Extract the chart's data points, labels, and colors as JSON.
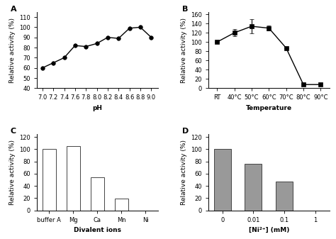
{
  "A": {
    "x": [
      7.0,
      7.2,
      7.4,
      7.6,
      7.8,
      8.0,
      8.2,
      8.4,
      8.6,
      8.8,
      9.0
    ],
    "y": [
      60,
      65,
      70,
      82,
      81,
      84,
      90,
      89,
      99,
      100,
      90
    ],
    "xlabel": "pH",
    "ylabel": "Relative activity (%)",
    "ylim": [
      40,
      115
    ],
    "yticks": [
      40,
      50,
      60,
      70,
      80,
      90,
      100,
      110
    ],
    "xticks": [
      7.0,
      7.2,
      7.4,
      7.6,
      7.8,
      8.0,
      8.2,
      8.4,
      8.6,
      8.8,
      9.0
    ],
    "xlabels": [
      "7.0",
      "7.2",
      "7.4",
      "7.6",
      "7.8",
      "8.0",
      "8.2",
      "8.4",
      "8.6",
      "8.8",
      "9.0"
    ],
    "label": "A"
  },
  "B": {
    "x": [
      0,
      1,
      2,
      3,
      4,
      5,
      6
    ],
    "xlabels": [
      "RT",
      "40°C",
      "50°C",
      "60°C",
      "70°C",
      "80°C",
      "90°C"
    ],
    "y": [
      100,
      120,
      134,
      130,
      87,
      8,
      8
    ],
    "yerr": [
      0,
      8,
      15,
      5,
      0,
      2,
      2
    ],
    "xlabel": "Temperature",
    "ylabel": "Relative activity (%)",
    "ylim": [
      0,
      165
    ],
    "yticks": [
      0,
      20,
      40,
      60,
      80,
      100,
      120,
      140,
      160
    ],
    "label": "B"
  },
  "C": {
    "categories": [
      "buffer A",
      "Mg",
      "Ca",
      "Mn",
      "Ni"
    ],
    "values": [
      100,
      105,
      54,
      19,
      0
    ],
    "bar_color": "white",
    "bar_edgecolor": "#444444",
    "xlabel": "Divalent ions",
    "ylabel": "Relative activity (%)",
    "ylim": [
      0,
      125
    ],
    "yticks": [
      0,
      20,
      40,
      60,
      80,
      100,
      120
    ],
    "label": "C"
  },
  "D": {
    "categories": [
      "0",
      "0.01",
      "0.1",
      "1"
    ],
    "values": [
      100,
      76,
      47,
      0
    ],
    "bar_color": "#999999",
    "bar_edgecolor": "#444444",
    "xlabel": "[Ni²⁺] (mM)",
    "ylabel": "Relative activity (%)",
    "ylim": [
      0,
      125
    ],
    "yticks": [
      0,
      20,
      40,
      60,
      80,
      100,
      120
    ],
    "label": "D"
  },
  "line_color": "black",
  "marker_circle": "o",
  "marker_square": "s",
  "markersize": 4,
  "linewidth": 1.0,
  "fontsize_label": 6.5,
  "fontsize_tick": 6.0,
  "fontsize_panel": 8,
  "bar_width": 0.55
}
